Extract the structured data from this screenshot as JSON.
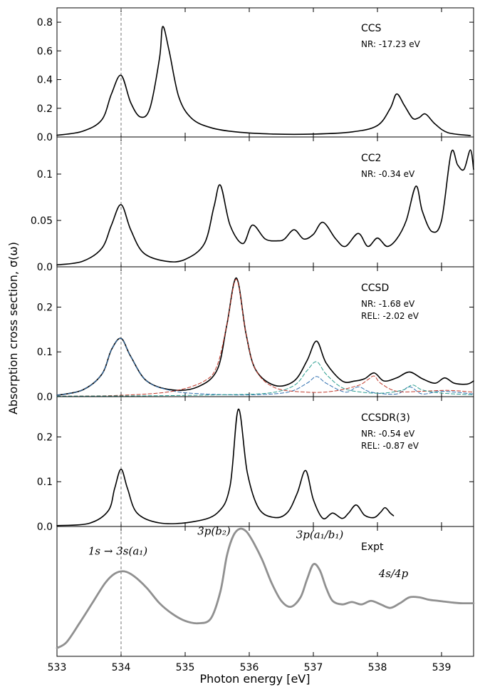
{
  "figure": {
    "xlabel": "Photon energy [eV]",
    "ylabel": "Absorption cross section, σ(ω)",
    "reference_line_x": 534.0
  },
  "chart_data": [
    {
      "type": "line",
      "title": "CCS",
      "notes": [
        "NR: -17.23 eV"
      ],
      "xlim": [
        533,
        539.5
      ],
      "ylim": [
        0,
        0.9
      ],
      "yticks": [
        "0.0",
        "0.2",
        "0.4",
        "0.6",
        "0.8"
      ],
      "ytick_values": [
        0,
        0.2,
        0.4,
        0.6,
        0.8
      ],
      "series": [
        {
          "color": "#000000",
          "dashed": false,
          "width": 1.6,
          "x": [
            533.0,
            533.4,
            533.7,
            533.85,
            534.0,
            534.15,
            534.3,
            534.45,
            534.6,
            534.65,
            534.75,
            534.9,
            535.1,
            535.4,
            535.8,
            536.4,
            537.0,
            537.6,
            538.0,
            538.2,
            538.3,
            538.42,
            538.55,
            538.65,
            538.75,
            538.9,
            539.1,
            539.45
          ],
          "y": [
            0.012,
            0.04,
            0.12,
            0.3,
            0.43,
            0.24,
            0.14,
            0.2,
            0.55,
            0.77,
            0.6,
            0.28,
            0.13,
            0.065,
            0.035,
            0.02,
            0.02,
            0.035,
            0.08,
            0.2,
            0.3,
            0.22,
            0.13,
            0.135,
            0.16,
            0.09,
            0.03,
            0.01
          ]
        }
      ]
    },
    {
      "type": "line",
      "title": "CC2",
      "notes": [
        "NR: -0.34 eV"
      ],
      "xlim": [
        533,
        539.5
      ],
      "ylim": [
        0,
        0.14
      ],
      "yticks": [
        "0.0",
        "0.05",
        "0.1"
      ],
      "ytick_values": [
        0,
        0.05,
        0.1
      ],
      "series": [
        {
          "color": "#000000",
          "dashed": false,
          "width": 1.6,
          "x": [
            533.0,
            533.4,
            533.7,
            533.85,
            534.0,
            534.15,
            534.35,
            534.7,
            535.0,
            535.3,
            535.45,
            535.55,
            535.7,
            535.9,
            536.05,
            536.25,
            536.45,
            536.55,
            536.7,
            536.85,
            537.0,
            537.15,
            537.35,
            537.5,
            537.7,
            537.85,
            538.0,
            538.15,
            538.3,
            538.45,
            538.6,
            538.7,
            538.85,
            539.0,
            539.15,
            539.25,
            539.35,
            539.45,
            539.5
          ],
          "y": [
            0.002,
            0.006,
            0.02,
            0.045,
            0.067,
            0.04,
            0.015,
            0.006,
            0.008,
            0.025,
            0.065,
            0.088,
            0.045,
            0.025,
            0.045,
            0.03,
            0.028,
            0.03,
            0.04,
            0.03,
            0.035,
            0.048,
            0.03,
            0.022,
            0.036,
            0.022,
            0.031,
            0.022,
            0.03,
            0.05,
            0.087,
            0.06,
            0.038,
            0.05,
            0.123,
            0.11,
            0.105,
            0.126,
            0.105
          ]
        }
      ]
    },
    {
      "type": "line",
      "title": "CCSD",
      "notes": [
        "NR: -1.68 eV",
        "REL: -2.02 eV"
      ],
      "xlim": [
        533,
        539.5
      ],
      "ylim": [
        0,
        0.29
      ],
      "yticks": [
        "0.0",
        "0.1",
        "0.2"
      ],
      "ytick_values": [
        0,
        0.1,
        0.2
      ],
      "series": [
        {
          "color": "#000000",
          "dashed": false,
          "width": 1.6,
          "x": [
            533.0,
            533.4,
            533.7,
            533.85,
            534.0,
            534.15,
            534.4,
            534.8,
            535.2,
            535.5,
            535.65,
            535.8,
            535.95,
            536.1,
            536.4,
            536.7,
            536.9,
            537.05,
            537.2,
            537.45,
            537.65,
            537.8,
            537.95,
            538.1,
            538.3,
            538.5,
            538.7,
            538.9,
            539.05,
            539.2,
            539.4,
            539.5
          ],
          "y": [
            0.003,
            0.015,
            0.05,
            0.105,
            0.13,
            0.09,
            0.035,
            0.015,
            0.022,
            0.06,
            0.16,
            0.265,
            0.14,
            0.06,
            0.025,
            0.035,
            0.08,
            0.124,
            0.075,
            0.035,
            0.035,
            0.04,
            0.053,
            0.035,
            0.042,
            0.055,
            0.04,
            0.03,
            0.042,
            0.03,
            0.028,
            0.035
          ]
        },
        {
          "color": "#2e6fb0",
          "dashed": true,
          "width": 1.0,
          "x": [
            533.0,
            533.4,
            533.7,
            533.85,
            534.0,
            534.15,
            534.4,
            534.8,
            535.3,
            536.0,
            536.6,
            536.9,
            537.05,
            537.2,
            537.5,
            537.7,
            537.9,
            538.3,
            538.5,
            538.7,
            539.0,
            539.5
          ],
          "y": [
            0.003,
            0.015,
            0.05,
            0.105,
            0.13,
            0.09,
            0.035,
            0.013,
            0.006,
            0.004,
            0.01,
            0.03,
            0.045,
            0.03,
            0.01,
            0.022,
            0.01,
            0.006,
            0.022,
            0.006,
            0.012,
            0.006
          ]
        },
        {
          "color": "#c0392b",
          "dashed": true,
          "width": 1.0,
          "x": [
            533.0,
            534.0,
            534.8,
            535.3,
            535.5,
            535.65,
            535.8,
            535.95,
            536.1,
            536.4,
            536.9,
            537.3,
            537.7,
            537.85,
            537.95,
            538.05,
            538.3,
            538.7,
            539.1,
            539.5
          ],
          "y": [
            0.001,
            0.003,
            0.012,
            0.035,
            0.07,
            0.16,
            0.262,
            0.14,
            0.06,
            0.02,
            0.01,
            0.012,
            0.025,
            0.038,
            0.046,
            0.03,
            0.012,
            0.012,
            0.014,
            0.01
          ]
        },
        {
          "color": "#2a9d8f",
          "dashed": true,
          "width": 1.0,
          "x": [
            533.0,
            534.5,
            535.5,
            536.3,
            536.7,
            536.9,
            537.05,
            537.2,
            537.45,
            537.75,
            538.1,
            538.4,
            538.55,
            538.7,
            539.0,
            539.5
          ],
          "y": [
            0.001,
            0.002,
            0.004,
            0.008,
            0.025,
            0.058,
            0.078,
            0.05,
            0.02,
            0.01,
            0.008,
            0.015,
            0.026,
            0.015,
            0.008,
            0.004
          ]
        }
      ]
    },
    {
      "type": "line",
      "title": "CCSDR(3)",
      "notes": [
        "NR: -0.54 eV",
        "REL: -0.87 eV"
      ],
      "xlim": [
        533,
        539.5
      ],
      "ylim": [
        0,
        0.29
      ],
      "yticks": [
        "0.0",
        "0.1",
        "0.2"
      ],
      "ytick_values": [
        0,
        0.1,
        0.2
      ],
      "series": [
        {
          "color": "#000000",
          "dashed": false,
          "width": 1.6,
          "x": [
            533.0,
            533.5,
            533.8,
            533.9,
            534.0,
            534.1,
            534.25,
            534.6,
            535.1,
            535.5,
            535.7,
            535.83,
            535.97,
            536.15,
            536.4,
            536.6,
            536.75,
            536.88,
            537.0,
            537.15,
            537.3,
            537.45,
            537.55,
            537.67,
            537.8,
            537.95,
            538.05,
            538.12,
            538.2,
            538.25
          ],
          "y": [
            0.002,
            0.007,
            0.035,
            0.085,
            0.128,
            0.085,
            0.03,
            0.008,
            0.01,
            0.03,
            0.09,
            0.262,
            0.12,
            0.04,
            0.02,
            0.032,
            0.075,
            0.125,
            0.06,
            0.018,
            0.03,
            0.018,
            0.03,
            0.048,
            0.025,
            0.02,
            0.032,
            0.042,
            0.03,
            0.024
          ]
        }
      ]
    },
    {
      "type": "line",
      "title": "Expt",
      "notes": [],
      "xlim": [
        533,
        539.5
      ],
      "ylim": [
        0,
        1.1
      ],
      "xticks": [
        "533",
        "534",
        "535",
        "536",
        "537",
        "538",
        "539"
      ],
      "xtick_values": [
        533,
        534,
        535,
        536,
        537,
        538,
        539
      ],
      "yticks": [],
      "annotations": [
        {
          "text": "1s → 3s(a₁)",
          "x": 533.95,
          "y": 0.86
        },
        {
          "text": "3p(b₂)",
          "x": 535.45,
          "y": 1.03
        },
        {
          "text": "3p(a₁/b₁)",
          "x": 537.1,
          "y": 1.0
        },
        {
          "text": "4s/4p",
          "x": 538.25,
          "y": 0.67
        }
      ],
      "series": [
        {
          "color": "#909090",
          "dashed": false,
          "width": 2.8,
          "x": [
            533.0,
            533.15,
            533.35,
            533.55,
            533.75,
            533.9,
            534.05,
            534.2,
            534.4,
            534.6,
            534.8,
            535.0,
            535.2,
            535.4,
            535.55,
            535.65,
            535.75,
            535.85,
            535.95,
            536.05,
            536.2,
            536.35,
            536.5,
            536.65,
            536.8,
            536.9,
            537.0,
            537.1,
            537.2,
            537.3,
            537.45,
            537.6,
            537.75,
            537.9,
            538.05,
            538.2,
            538.35,
            538.5,
            538.65,
            538.8,
            538.95,
            539.1,
            539.3,
            539.5
          ],
          "y": [
            0.07,
            0.12,
            0.28,
            0.45,
            0.62,
            0.7,
            0.72,
            0.68,
            0.58,
            0.45,
            0.36,
            0.3,
            0.28,
            0.32,
            0.55,
            0.85,
            1.02,
            1.08,
            1.06,
            0.98,
            0.82,
            0.62,
            0.47,
            0.42,
            0.5,
            0.65,
            0.78,
            0.73,
            0.58,
            0.47,
            0.44,
            0.46,
            0.44,
            0.47,
            0.44,
            0.41,
            0.45,
            0.5,
            0.5,
            0.48,
            0.47,
            0.46,
            0.45,
            0.45
          ]
        }
      ]
    }
  ]
}
